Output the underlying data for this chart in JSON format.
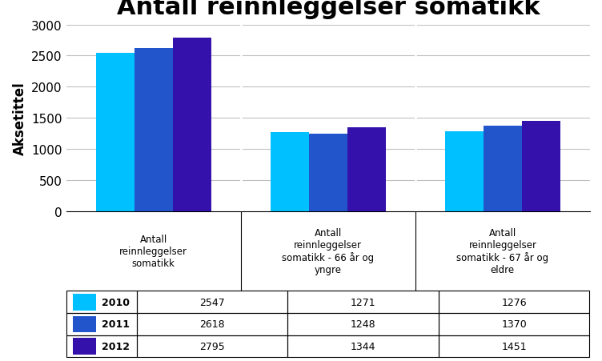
{
  "title": "Antall reinnleggelser somatikk",
  "ylabel": "Aksetittel",
  "categories": [
    "Antall\nreinnleggelser\nsomatikk",
    "Antall\nreinnleggelser\nsomatikk - 66 år og\nyngre",
    "Antall\nreinnleggelser\nsomatikk - 67 år og\neldre"
  ],
  "years": [
    "2010",
    "2011",
    "2012"
  ],
  "values": {
    "2010": [
      2547,
      1271,
      1276
    ],
    "2011": [
      2618,
      1248,
      1370
    ],
    "2012": [
      2795,
      1344,
      1451
    ]
  },
  "colors": {
    "2010": "#00C0FF",
    "2011": "#2255CC",
    "2012": "#3311AA"
  },
  "ylim": [
    0,
    3000
  ],
  "yticks": [
    0,
    500,
    1000,
    1500,
    2000,
    2500,
    3000
  ],
  "background_color": "#ffffff",
  "chart_bg": "#ffffff",
  "grid_color": "#C0C0C0",
  "title_fontsize": 22,
  "ylabel_fontsize": 12,
  "bar_width": 0.22,
  "table_rows": [
    [
      "2010",
      "2547",
      "1271",
      "1276"
    ],
    [
      "2011",
      "2618",
      "1248",
      "1370"
    ],
    [
      "2012",
      "2795",
      "1344",
      "1451"
    ]
  ]
}
